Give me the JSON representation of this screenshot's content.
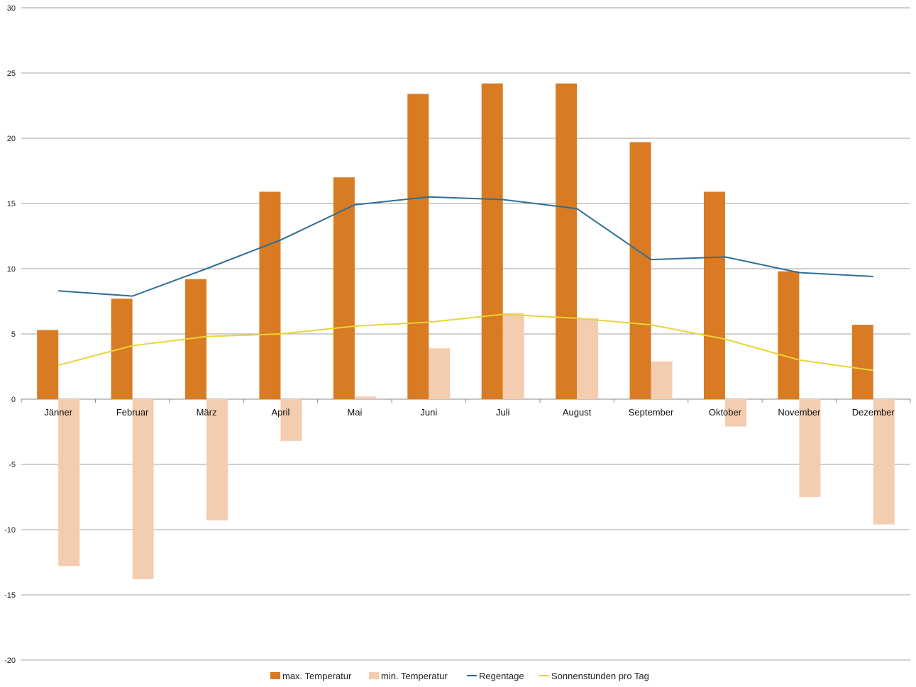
{
  "chart_data": {
    "type": "bar",
    "title": "",
    "xlabel": "",
    "ylabel": "",
    "ylim": [
      -20,
      30
    ],
    "yticks": [
      -20,
      -15,
      -10,
      -5,
      0,
      5,
      10,
      15,
      20,
      25,
      30
    ],
    "grid": true,
    "legend_position": "bottom",
    "categories": [
      "Jänner",
      "Februar",
      "März",
      "April",
      "Mai",
      "Juni",
      "Juli",
      "August",
      "September",
      "Oktober",
      "November",
      "Dezember"
    ],
    "series": [
      {
        "name": "max. Temperatur",
        "kind": "bar",
        "color": "#d97b22",
        "values": [
          5.3,
          7.7,
          9.2,
          15.9,
          17.0,
          23.4,
          24.2,
          24.2,
          19.7,
          15.9,
          9.8,
          5.7
        ]
      },
      {
        "name": "min. Temperatur",
        "kind": "bar",
        "color": "#f4cdb0",
        "values": [
          -12.8,
          -13.8,
          -9.3,
          -3.2,
          0.2,
          3.9,
          6.6,
          6.2,
          2.9,
          -2.1,
          -7.5,
          -9.6
        ]
      },
      {
        "name": "Regentage",
        "kind": "line",
        "color": "#2e6e96",
        "values": [
          8.3,
          7.9,
          10.0,
          12.2,
          14.9,
          15.5,
          15.3,
          14.6,
          10.7,
          10.9,
          9.7,
          9.4
        ]
      },
      {
        "name": "Sonnenstunden pro Tag",
        "kind": "line",
        "color": "#e8d43a",
        "values": [
          2.6,
          4.1,
          4.8,
          5.0,
          5.6,
          5.9,
          6.5,
          6.2,
          5.7,
          4.6,
          3.0,
          2.2
        ]
      }
    ]
  }
}
